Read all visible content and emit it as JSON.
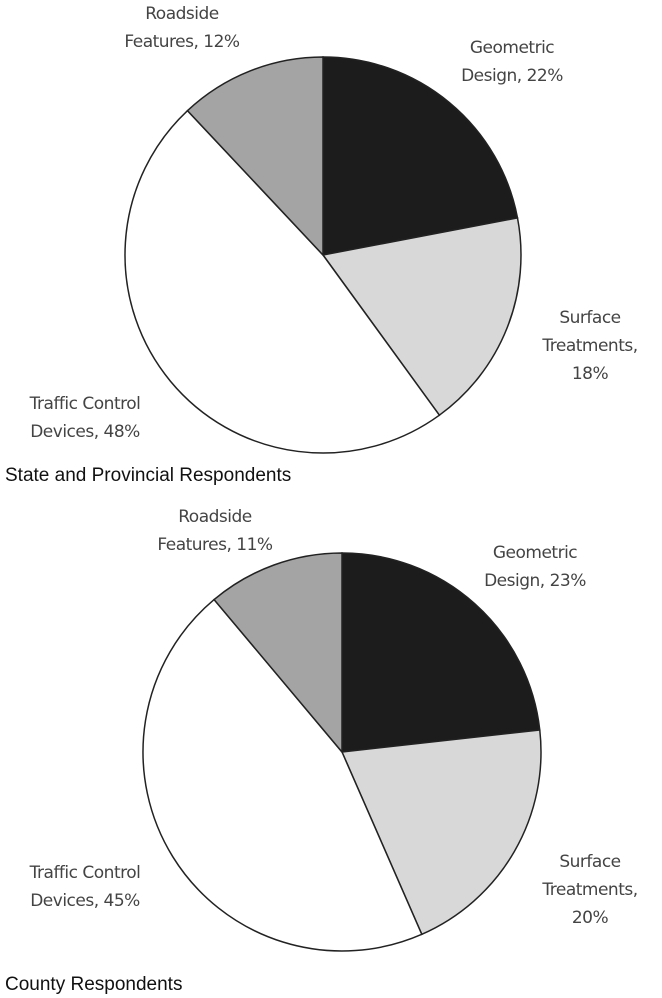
{
  "chart_data": [
    {
      "type": "pie",
      "title": "State and Provincial Respondents",
      "values": [
        22,
        18,
        48,
        12
      ],
      "value_labels": [
        "Geometric Design, 22%",
        "Surface Treatments, 18%",
        "Traffic Control Devices, 48%",
        "Roadside Features, 12%"
      ],
      "colors": [
        "#1c1c1c",
        "#d8d8d8",
        "#ffffff",
        "#a4a4a4"
      ]
    },
    {
      "type": "pie",
      "title": "County Respondents",
      "values": [
        23,
        20,
        45,
        11
      ],
      "value_labels": [
        "Geometric Design, 23%",
        "Surface Treatments, 20%",
        "Traffic Control Devices, 45%",
        "Roadside Features, 11%"
      ],
      "colors": [
        "#1c1c1c",
        "#d8d8d8",
        "#ffffff",
        "#a4a4a4"
      ]
    }
  ]
}
